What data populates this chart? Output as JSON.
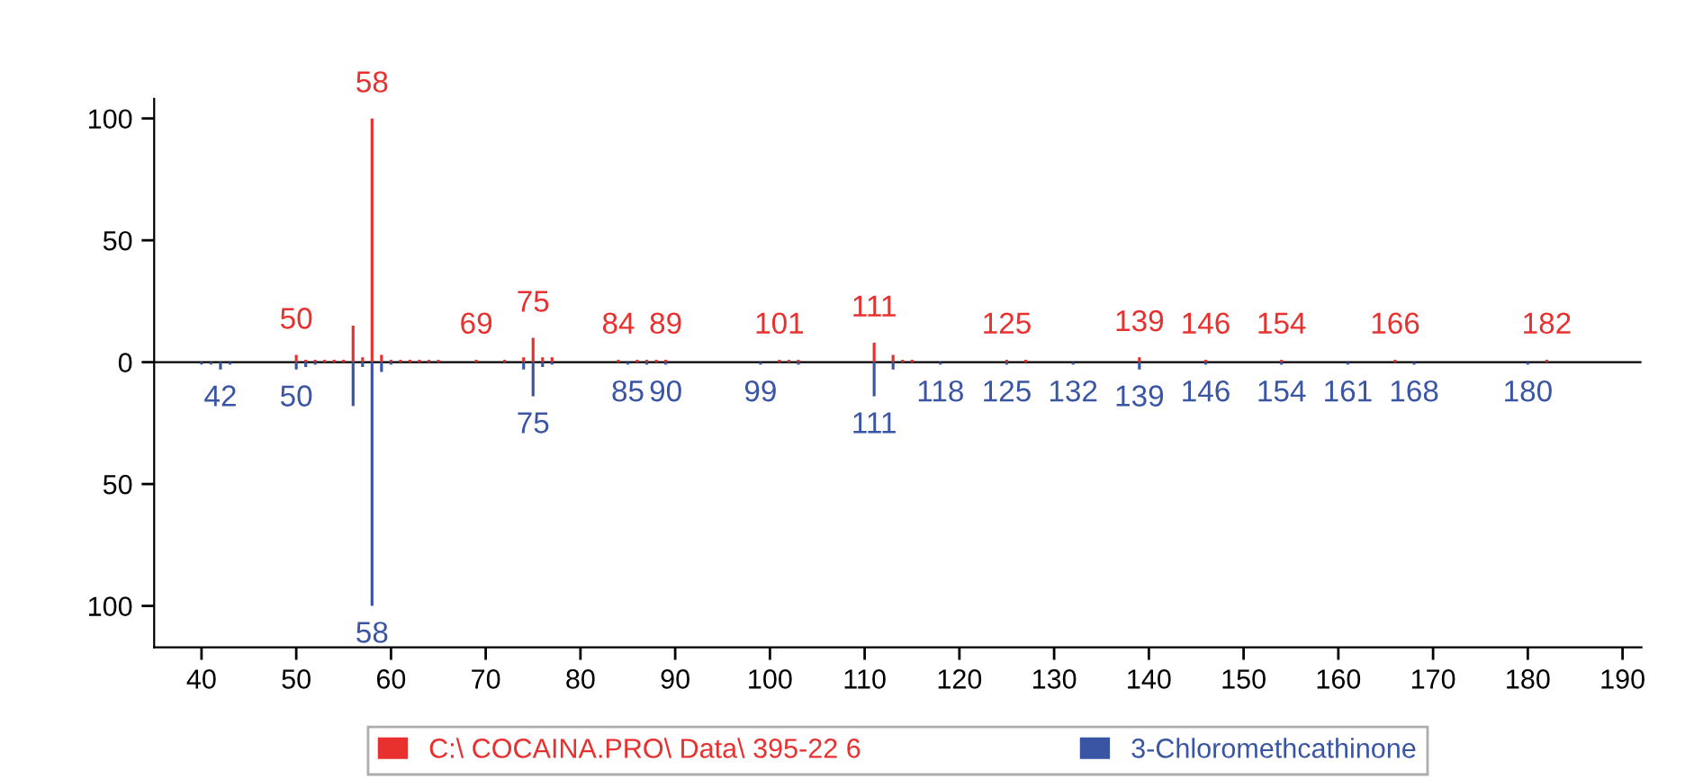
{
  "chart_data": {
    "type": "bar",
    "series": [
      {
        "name": "C:\\ COCAINA.PRO\\ Data\\ 395-22 6",
        "color": "#e8312f",
        "x": [
          50,
          51,
          52,
          53,
          54,
          55,
          56,
          57,
          58,
          59,
          60,
          61,
          62,
          63,
          64,
          65,
          69,
          72,
          74,
          75,
          76,
          77,
          84,
          86,
          87,
          88,
          89,
          101,
          102,
          103,
          111,
          113,
          114,
          115,
          125,
          127,
          139,
          146,
          154,
          166,
          182
        ],
        "values": [
          3,
          1,
          1,
          1,
          1,
          1,
          15,
          2,
          100,
          3,
          1,
          1,
          1,
          1,
          1,
          1,
          1,
          1,
          2,
          10,
          2,
          2,
          1,
          1,
          1,
          1,
          1,
          1,
          1,
          1,
          8,
          3,
          1,
          1,
          1,
          1,
          2,
          1,
          1,
          1,
          1
        ]
      },
      {
        "name": "3-Chloromethcathinone",
        "color": "#3a55a4",
        "x": [
          40,
          41,
          42,
          43,
          50,
          51,
          52,
          56,
          57,
          58,
          59,
          60,
          74,
          75,
          76,
          77,
          85,
          87,
          89,
          99,
          103,
          111,
          113,
          118,
          125,
          132,
          139,
          146,
          154,
          161,
          168,
          180
        ],
        "values": [
          -1,
          -1,
          -3,
          -1,
          -3,
          -2,
          -1,
          -18,
          -2,
          -100,
          -4,
          -1,
          -3,
          -14,
          -2,
          -1,
          -1,
          -1,
          -1,
          -1,
          -1,
          -14,
          -3,
          -1,
          -1,
          -1,
          -3,
          -1,
          -1,
          -1,
          -1,
          -1
        ]
      }
    ],
    "xlim": [
      35,
      192
    ],
    "xticks": [
      40,
      50,
      60,
      70,
      80,
      90,
      100,
      110,
      120,
      130,
      140,
      150,
      160,
      170,
      180,
      190
    ],
    "ylim": [
      -117,
      108
    ],
    "yticks": [
      {
        "value": -100,
        "label": "100"
      },
      {
        "value": -50,
        "label": "50"
      },
      0,
      50,
      100
    ],
    "ref_lines": [
      {
        "axis": "y",
        "value": 0,
        "color": "#000000"
      }
    ],
    "legend": "bottom",
    "grid": false,
    "annotations": [
      {
        "text": "50",
        "x": 50,
        "y": 3
      },
      {
        "text": "58",
        "x": 58,
        "y": 100
      },
      {
        "text": "69",
        "x": 69,
        "y": 1
      },
      {
        "text": "75",
        "x": 75,
        "y": 10
      },
      {
        "text": "84",
        "x": 84,
        "y": 1
      },
      {
        "text": "89",
        "x": 89,
        "y": 1
      },
      {
        "text": "101",
        "x": 101,
        "y": 1
      },
      {
        "text": "111",
        "x": 111,
        "y": 8
      },
      {
        "text": "125",
        "x": 125,
        "y": 1
      },
      {
        "text": "139",
        "x": 139,
        "y": 2
      },
      {
        "text": "146",
        "x": 146,
        "y": 1
      },
      {
        "text": "154",
        "x": 154,
        "y": 1
      },
      {
        "text": "166",
        "x": 166,
        "y": 1
      },
      {
        "text": "182",
        "x": 182,
        "y": 1
      },
      {
        "text": "42",
        "x": 42,
        "y": -3
      },
      {
        "text": "50",
        "x": 50,
        "y": -3
      },
      {
        "text": "58",
        "x": 58,
        "y": -100
      },
      {
        "text": "75",
        "x": 75,
        "y": -14
      },
      {
        "text": "85",
        "x": 85,
        "y": -1
      },
      {
        "text": "90",
        "x": 89,
        "y": -1
      },
      {
        "text": "99",
        "x": 99,
        "y": -1
      },
      {
        "text": "111",
        "x": 111,
        "y": -14
      },
      {
        "text": "118",
        "x": 118,
        "y": -1
      },
      {
        "text": "125",
        "x": 125,
        "y": -1
      },
      {
        "text": "132",
        "x": 132,
        "y": -1
      },
      {
        "text": "139",
        "x": 139,
        "y": -3
      },
      {
        "text": "146",
        "x": 146,
        "y": -1
      },
      {
        "text": "154",
        "x": 154,
        "y": -1
      },
      {
        "text": "161",
        "x": 161,
        "y": -1
      },
      {
        "text": "168",
        "x": 168,
        "y": -1
      },
      {
        "text": "180",
        "x": 180,
        "y": -1
      }
    ]
  }
}
